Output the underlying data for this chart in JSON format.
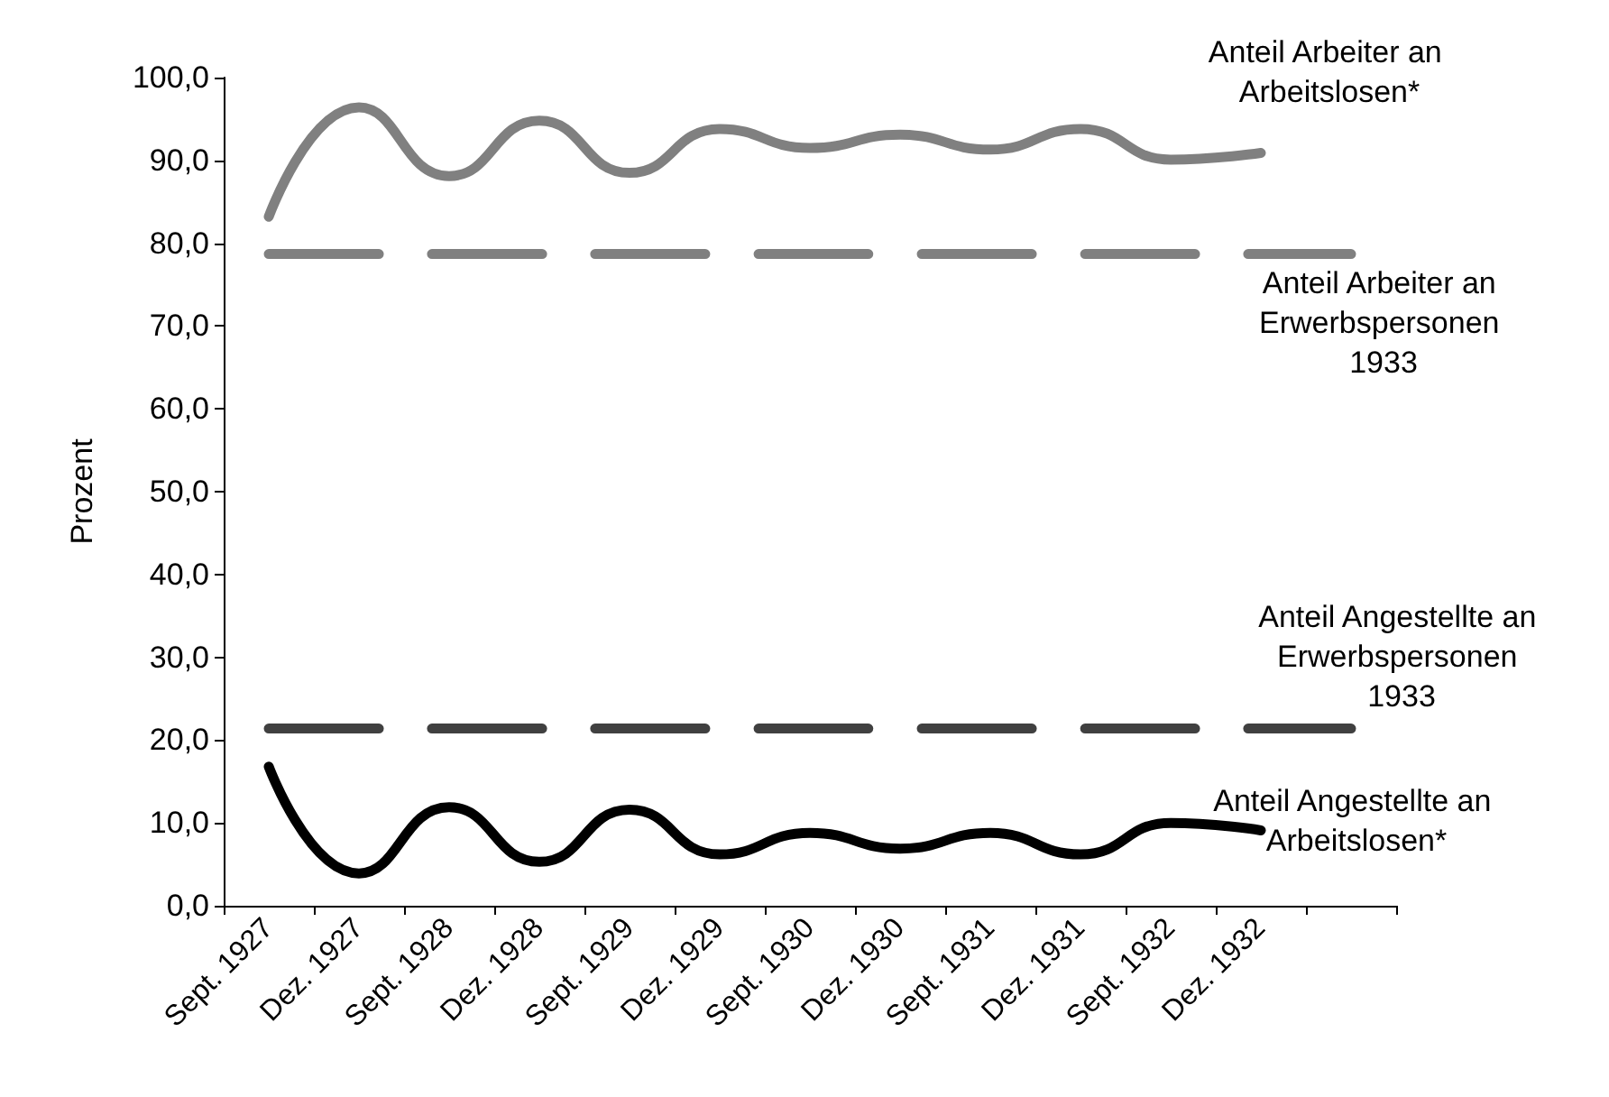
{
  "chart_data": {
    "type": "line",
    "ylabel": "Prozent",
    "categories": [
      "Sept. 1927",
      "Dez. 1927",
      "Sept. 1928",
      "Dez. 1928",
      "Sept. 1929",
      "Dez. 1929",
      "Sept. 1930",
      "Dez. 1930",
      "Sept. 1931",
      "Dez. 1931",
      "Sept. 1932",
      "Dez. 1932",
      null
    ],
    "ylim": [
      0,
      100
    ],
    "yticks": [
      {
        "value": 0,
        "label": "0,0"
      },
      {
        "value": 10,
        "label": "10,0"
      },
      {
        "value": 20,
        "label": "20,0"
      },
      {
        "value": 30,
        "label": "30,0"
      },
      {
        "value": 40,
        "label": "40,0"
      },
      {
        "value": 50,
        "label": "50,0"
      },
      {
        "value": 60,
        "label": "60,0"
      },
      {
        "value": 70,
        "label": "70,0"
      },
      {
        "value": 80,
        "label": "80,0"
      },
      {
        "value": 90,
        "label": "90,0"
      },
      {
        "value": 100,
        "label": "100,0"
      }
    ],
    "grid": false,
    "legend": false,
    "marker": "none",
    "series": [
      {
        "name": "Anteil Arbeiter an Arbeitslosen*",
        "color": "#808080",
        "line_style": "solid",
        "values": [
          83.2,
          96.4,
          88.1,
          94.8,
          88.5,
          93.8,
          91.5,
          93.1,
          91.3,
          93.8,
          90.1,
          90.9,
          null
        ]
      },
      {
        "name": "Anteil Arbeiter an Erwerbspersonen 1933",
        "color": "#808080",
        "line_style": "dashed",
        "values": [
          78.7,
          78.7,
          78.7,
          78.7,
          78.7,
          78.7,
          78.7,
          78.7,
          78.7,
          78.7,
          78.7,
          78.7,
          78.7
        ]
      },
      {
        "name": "Anteil Angestellte an Erwerbspersonen 1933",
        "color": "#404040",
        "line_style": "dashed",
        "values": [
          21.4,
          21.4,
          21.4,
          21.4,
          21.4,
          21.4,
          21.4,
          21.4,
          21.4,
          21.4,
          21.4,
          21.4,
          21.4
        ]
      },
      {
        "name": "Anteil Angestellte an Arbeitslosen*",
        "color": "#000000",
        "line_style": "solid",
        "values": [
          16.8,
          3.9,
          11.9,
          5.3,
          11.6,
          6.2,
          8.8,
          6.9,
          8.8,
          6.2,
          10.0,
          9.1,
          null
        ]
      }
    ]
  }
}
